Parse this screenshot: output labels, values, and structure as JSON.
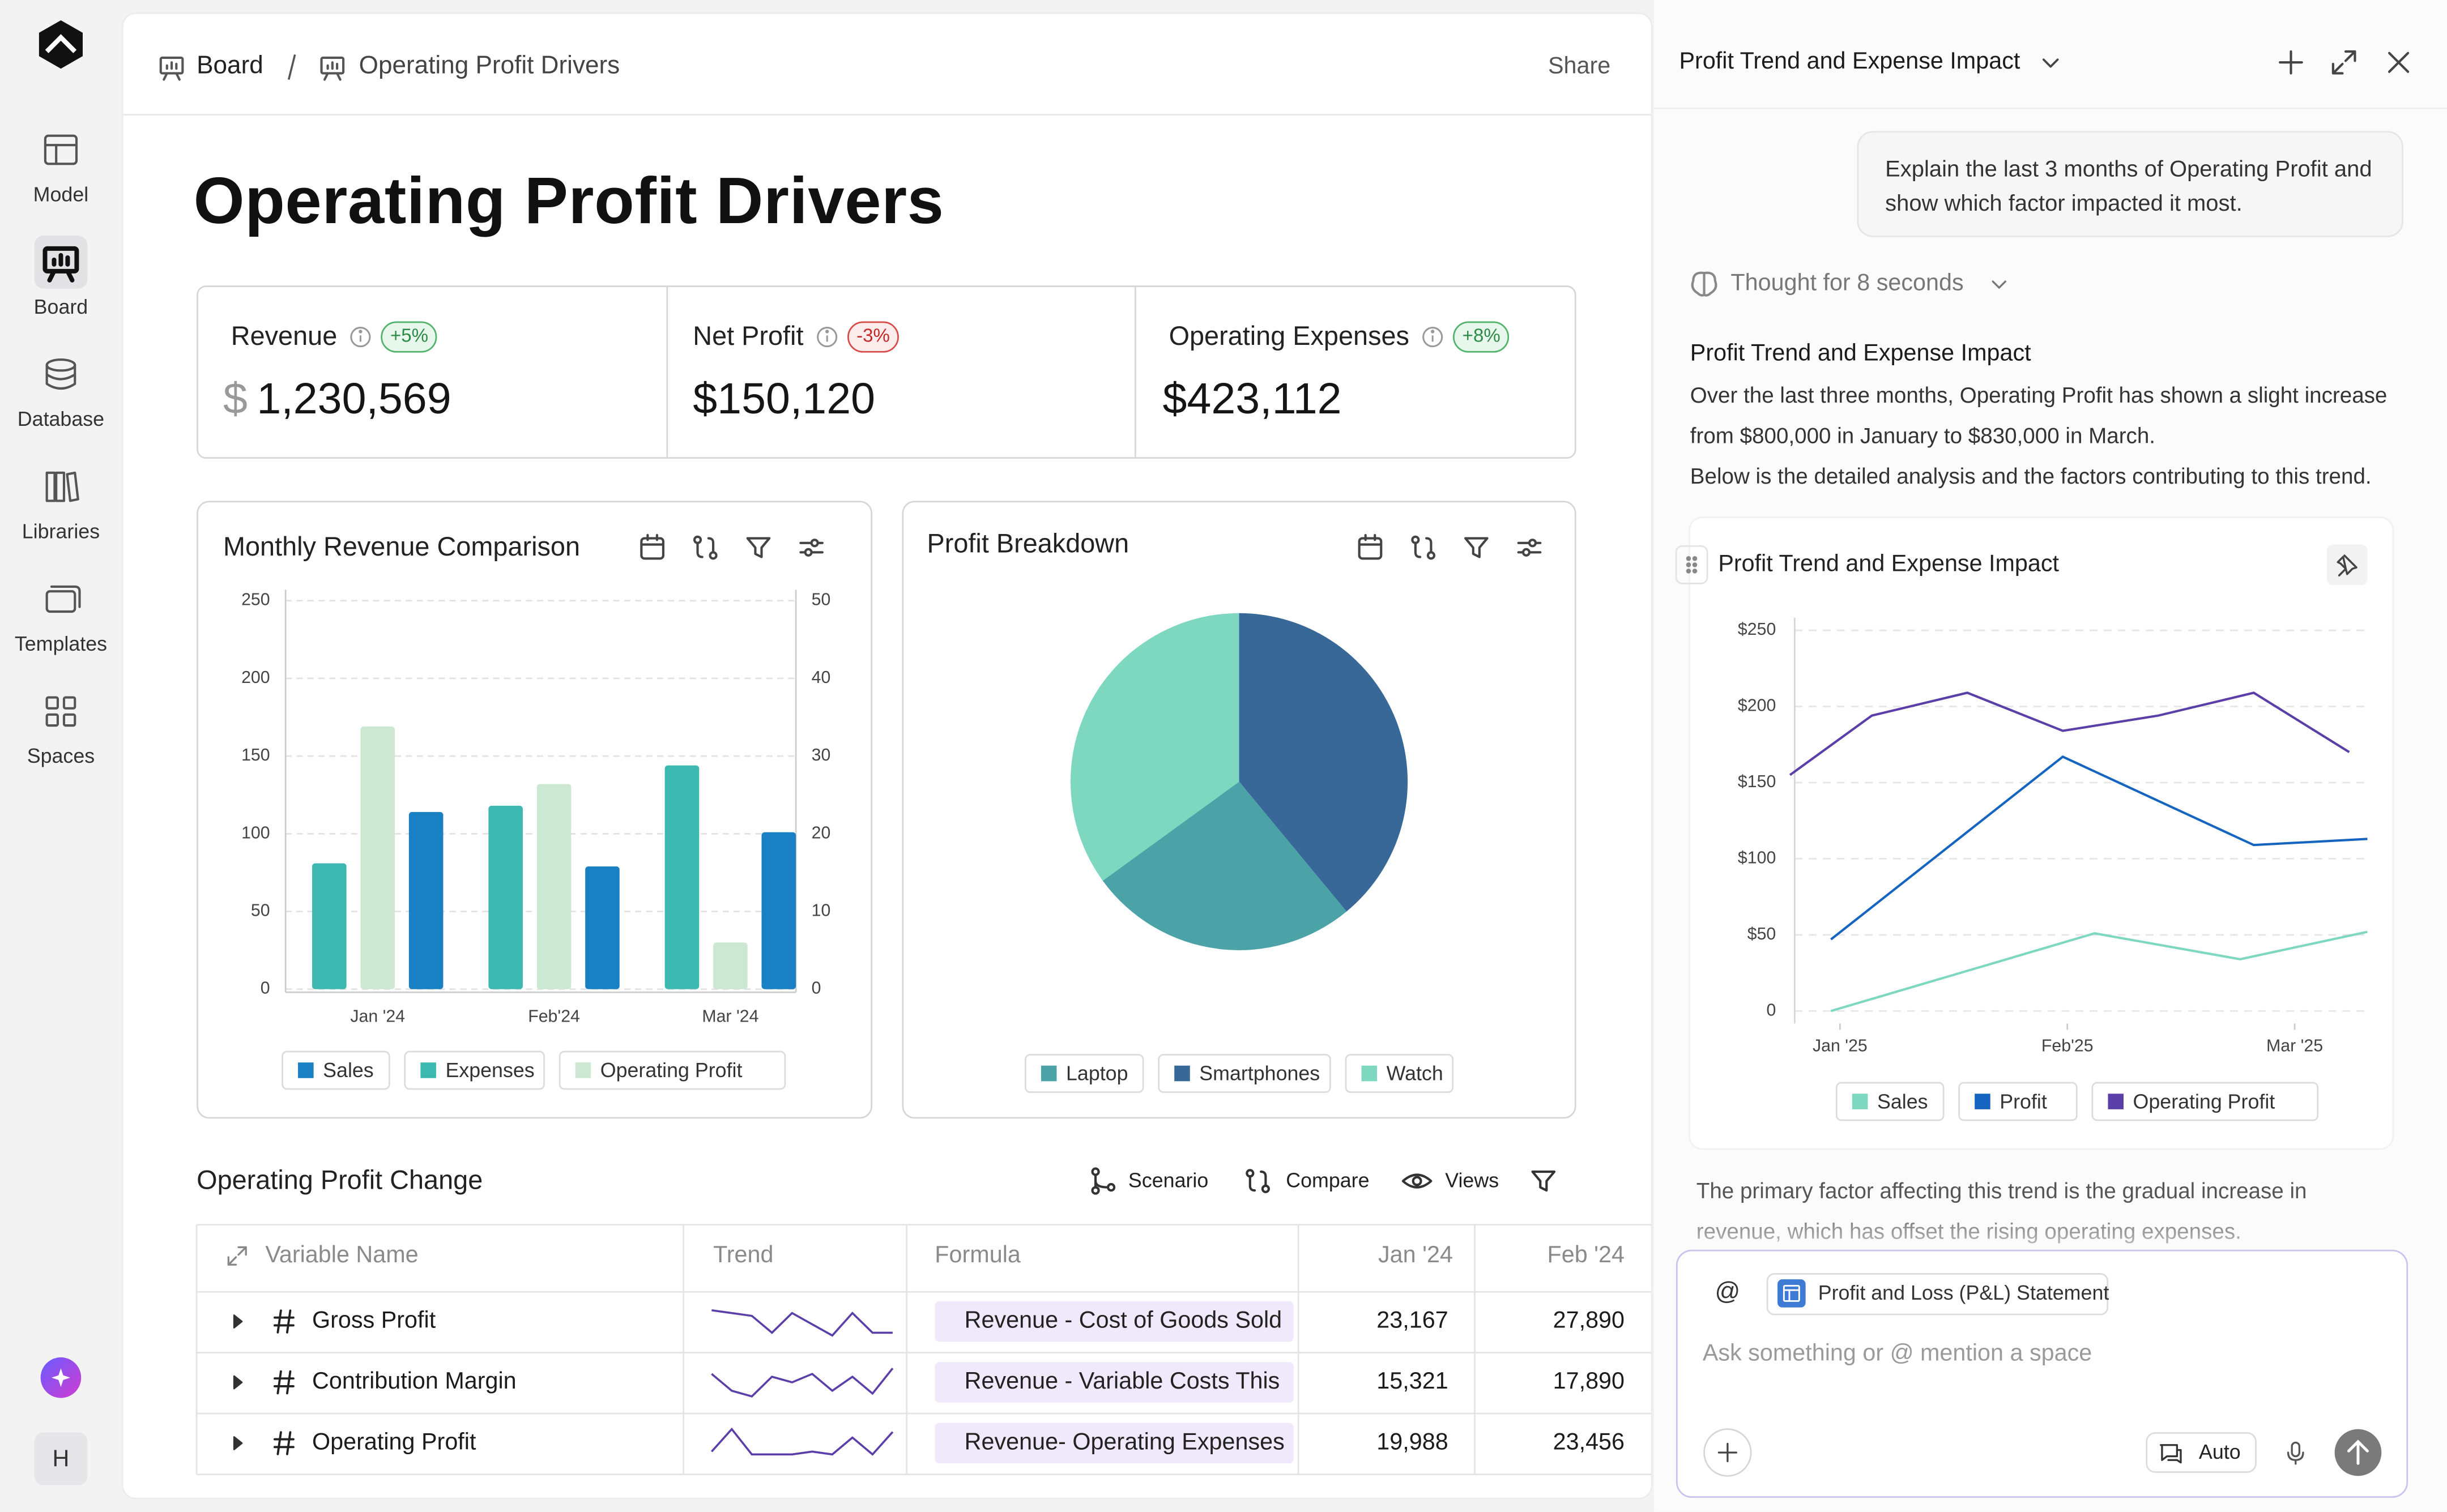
{
  "sidebar": {
    "items": [
      "Model",
      "Board",
      "Database",
      "Libraries",
      "Templates",
      "Spaces"
    ],
    "avatar": "H"
  },
  "breadcrumb": [
    "Board",
    "Operating Profit Drivers"
  ],
  "share": "Share",
  "title": "Operating Profit Drivers",
  "kpis": [
    {
      "label": "Revenue",
      "change": "+5%",
      "currency": "$",
      "value": "1,230,569",
      "trend": "up"
    },
    {
      "label": "Net Profit",
      "change": "-3%",
      "value": "$150,120",
      "trend": "down"
    },
    {
      "label": "Operating Expenses",
      "change": "+8%",
      "value": "$423,112",
      "trend": "up"
    }
  ],
  "chart_data": [
    {
      "type": "bar",
      "title": "Monthly Revenue Comparison",
      "categories": [
        "Jan '24",
        "Feb'24",
        "Mar '24"
      ],
      "series": [
        {
          "name": "Sales",
          "color": "#1a80c4",
          "values": [
            114,
            79,
            101
          ]
        },
        {
          "name": "Expenses",
          "color": "#3db8b0",
          "values": [
            81,
            118,
            144
          ]
        },
        {
          "name": "Operating Profit",
          "color": "#cce8d2",
          "values": [
            169,
            132,
            30
          ]
        }
      ],
      "ylim": [
        0,
        250
      ],
      "yticks": [
        0,
        50,
        100,
        150,
        200,
        250
      ],
      "y2lim": [
        0,
        50
      ],
      "y2ticks": [
        0,
        10,
        20,
        30,
        40,
        50
      ],
      "grid": true
    },
    {
      "type": "pie",
      "title": "Profit Breakdown",
      "categories": [
        "Laptop",
        "Smartphones",
        "Watch"
      ],
      "values": [
        26,
        39,
        35
      ],
      "colors": [
        "#4ba3a8",
        "#376897",
        "#7dd8bf"
      ]
    },
    {
      "type": "line",
      "title": "Profit Trend and Expense Impact",
      "xlim": [
        -0.1,
        12.6
      ],
      "xticks": [
        {
          "value": 1,
          "label": "Jan '25"
        },
        {
          "value": 6,
          "label": "Feb'25"
        },
        {
          "value": 11,
          "label": "Mar '25"
        }
      ],
      "ylim": [
        0,
        250
      ],
      "yticks": [
        0,
        {
          "value": 50,
          "label": "$50"
        },
        {
          "value": 100,
          "label": "$100"
        },
        {
          "value": 150,
          "label": "$150"
        },
        {
          "value": 200,
          "label": "$200"
        },
        {
          "value": 250,
          "label": "$250"
        }
      ],
      "grid": true,
      "series": [
        {
          "name": "Sales",
          "color": "#7dd8bf",
          "x": [
            0.8,
            6.6,
            9.8,
            12.6
          ],
          "values": [
            0,
            51,
            34,
            52
          ]
        },
        {
          "name": "Profit",
          "color": "#1565c0",
          "x": [
            0.8,
            5.9,
            10.1,
            12.6
          ],
          "values": [
            47,
            167,
            109,
            113
          ]
        },
        {
          "name": "Operating Profit",
          "color": "#5b3fa8",
          "x": [
            -0.1,
            1.7,
            3.8,
            5.9,
            8.0,
            10.1,
            12.2
          ],
          "values": [
            155,
            194,
            209,
            184,
            194,
            209,
            170
          ]
        }
      ]
    }
  ],
  "table": {
    "title": "Operating Profit Change",
    "tools": [
      "Scenario",
      "Compare",
      "Views"
    ],
    "columns": [
      "Variable Name",
      "Trend",
      "Formula",
      "Jan '24",
      "Feb '24"
    ],
    "trend_color": "#5b3fa8",
    "rows": [
      {
        "name": "Gross Profit",
        "trend": [
          9,
          8,
          7,
          1,
          8,
          4,
          0,
          8,
          1,
          1
        ],
        "formula": "Revenue - Cost of Goods Sold",
        "values": [
          "23,167",
          "27,890"
        ]
      },
      {
        "name": "Contribution Margin",
        "trend": [
          8,
          2,
          0,
          7,
          5,
          8,
          2,
          7,
          1,
          10
        ],
        "formula": "Revenue - Variable Costs  This",
        "values": [
          "15,321",
          "17,890"
        ]
      },
      {
        "name": "Operating Profit",
        "trend": [
          2,
          10,
          1,
          1,
          1,
          2,
          1,
          7,
          1,
          9
        ],
        "formula": "Revenue- Operating Expenses",
        "values": [
          "19,988",
          "23,456"
        ]
      }
    ]
  },
  "assistant": {
    "title": "Profit Trend and Expense Impact",
    "user_message": "Explain the last 3 months of Operating Profit and show which factor impacted it most.",
    "thought": "Thought for 8 seconds",
    "heading": "Profit Trend and Expense Impact",
    "paragraphs": [
      "Over the last three months, Operating Profit has shown a slight increase from $800,000 in January to $830,000 in March.",
      "Below is the detailed analysis and the factors contributing to this trend."
    ],
    "footer_text": "The primary factor affecting this trend is the gradual increase in revenue, which has offset the rising operating expenses.",
    "input": {
      "mention": "@",
      "attachment": "Profit and Loss (P&L) Statement",
      "placeholder": "Ask something or @ mention a space",
      "mode": "Auto"
    }
  }
}
